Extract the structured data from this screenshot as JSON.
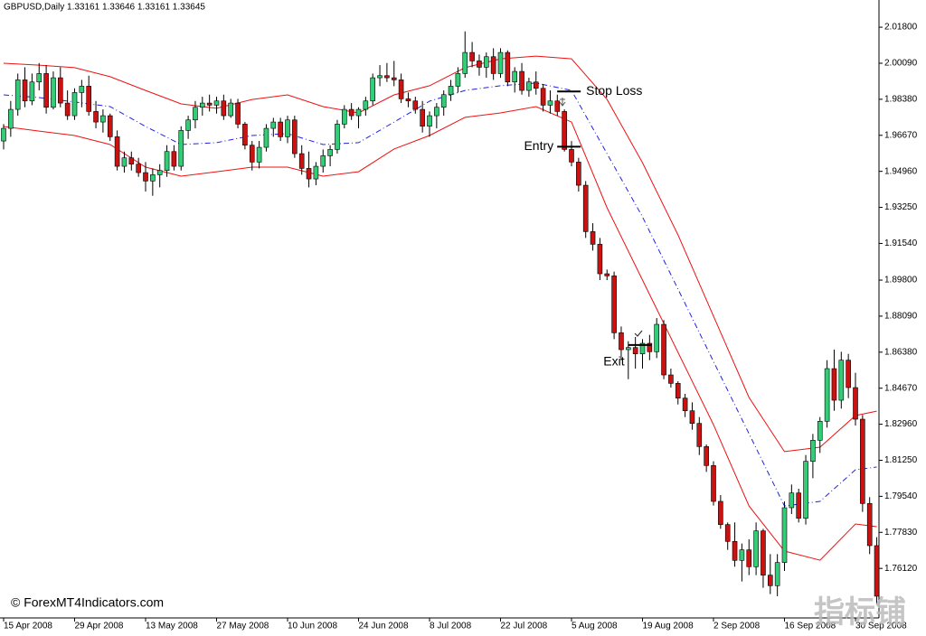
{
  "chart_data": {
    "type": "candlestick",
    "title": "GBPUSD,Daily  1.33161 1.33646 1.33161 1.33645",
    "credit": "© ForexMT4Indicators.com",
    "watermark": "指标铺",
    "categories": [
      "15 Apr 2008",
      null,
      null,
      null,
      null,
      null,
      null,
      null,
      null,
      null,
      "29 Apr 2008",
      null,
      null,
      null,
      null,
      null,
      null,
      null,
      null,
      null,
      "13 May 2008",
      null,
      null,
      null,
      null,
      null,
      null,
      null,
      null,
      null,
      "27 May 2008",
      null,
      null,
      null,
      null,
      null,
      null,
      null,
      null,
      null,
      "10 Jun 2008",
      null,
      null,
      null,
      null,
      null,
      null,
      null,
      null,
      null,
      "24 Jun 2008",
      null,
      null,
      null,
      null,
      null,
      null,
      null,
      null,
      null,
      "8 Jul 2008",
      null,
      null,
      null,
      null,
      null,
      null,
      null,
      null,
      null,
      "22 Jul 2008",
      null,
      null,
      null,
      null,
      null,
      null,
      null,
      null,
      null,
      "5 Aug 2008",
      null,
      null,
      null,
      null,
      null,
      null,
      null,
      null,
      null,
      "19 Aug 2008",
      null,
      null,
      null,
      null,
      null,
      null,
      null,
      null,
      null,
      "2 Sep 2008",
      null,
      null,
      null,
      null,
      null,
      null,
      null,
      null,
      null,
      "16 Sep 2008",
      null,
      null,
      null,
      null,
      null,
      null,
      null,
      null,
      null,
      "30 Sep 2008",
      null,
      null,
      null
    ],
    "open": [
      1.964,
      1.97,
      1.979,
      1.993,
      1.983,
      1.992,
      1.996,
      1.98,
      1.994,
      1.982,
      1.976,
      1.987,
      1.99,
      1.978,
      1.973,
      1.976,
      1.966,
      1.952,
      1.956,
      1.953,
      1.949,
      1.945,
      1.948,
      1.95,
      1.959,
      1.952,
      1.969,
      1.974,
      1.98,
      1.982,
      1.981,
      1.983,
      1.976,
      1.982,
      1.972,
      1.962,
      1.954,
      1.961,
      1.97,
      1.973,
      1.966,
      1.974,
      1.958,
      1.951,
      1.946,
      1.952,
      1.957,
      1.96,
      1.972,
      1.979,
      1.976,
      1.979,
      1.983,
      1.994,
      1.995,
      1.994,
      1.993,
      1.984,
      1.983,
      1.979,
      1.971,
      1.976,
      1.98,
      1.986,
      1.99,
      1.996,
      2.006,
      2.002,
      1.999,
      2.004,
      1.996,
      2.006,
      1.992,
      1.997,
      1.988,
      1.992,
      1.989,
      1.981,
      1.983,
      1.978,
      1.96,
      1.954,
      1.943,
      1.921,
      1.915,
      1.901,
      1.9,
      1.873,
      1.865,
      1.866,
      1.863,
      1.868,
      1.864,
      1.877,
      1.853,
      1.849,
      1.842,
      1.836,
      1.83,
      1.819,
      1.81,
      1.793,
      1.782,
      1.774,
      1.765,
      1.77,
      1.762,
      1.779,
      1.758,
      1.753,
      1.764,
      1.79,
      1.797,
      1.785,
      1.812,
      1.822,
      1.831,
      1.856,
      1.841,
      1.86,
      1.847,
      1.832,
      1.792,
      1.772
    ],
    "high": [
      1.972,
      1.983,
      1.996,
      1.999,
      1.996,
      2.001,
      2.0,
      1.997,
      1.999,
      1.988,
      1.989,
      1.993,
      1.995,
      1.983,
      1.979,
      1.977,
      1.969,
      1.959,
      1.959,
      1.956,
      1.954,
      1.951,
      1.953,
      1.962,
      1.962,
      1.971,
      1.976,
      1.983,
      1.985,
      1.986,
      1.985,
      1.986,
      1.984,
      1.984,
      1.973,
      1.964,
      1.964,
      1.972,
      1.975,
      1.975,
      1.976,
      1.976,
      1.962,
      1.959,
      1.954,
      1.96,
      1.962,
      1.974,
      1.981,
      1.982,
      1.98,
      1.985,
      1.996,
      2.0,
      2.001,
      2.002,
      1.996,
      1.987,
      1.985,
      1.983,
      1.978,
      1.982,
      1.988,
      1.993,
      1.999,
      2.016,
      2.011,
      2.005,
      2.006,
      2.008,
      2.008,
      2.007,
      1.999,
      2.001,
      1.994,
      1.997,
      1.991,
      1.988,
      1.986,
      1.979,
      1.964,
      1.956,
      1.945,
      1.925,
      1.918,
      1.903,
      1.902,
      1.876,
      1.869,
      1.871,
      1.87,
      1.872,
      1.88,
      1.879,
      1.856,
      1.85,
      1.844,
      1.84,
      1.833,
      1.82,
      1.812,
      1.796,
      1.783,
      1.783,
      1.773,
      1.775,
      1.783,
      1.78,
      1.768,
      1.768,
      1.793,
      1.801,
      1.799,
      1.815,
      1.825,
      1.833,
      1.86,
      1.865,
      1.864,
      1.863,
      1.854,
      1.834,
      1.795,
      1.776
    ],
    "low": [
      1.96,
      1.966,
      1.976,
      1.98,
      1.981,
      1.988,
      1.977,
      1.979,
      1.98,
      1.974,
      1.974,
      1.98,
      1.976,
      1.97,
      1.968,
      1.964,
      1.95,
      1.949,
      1.95,
      1.947,
      1.94,
      1.938,
      1.942,
      1.947,
      1.95,
      1.95,
      1.965,
      1.97,
      1.976,
      1.978,
      1.977,
      1.974,
      1.975,
      1.97,
      1.96,
      1.95,
      1.951,
      1.959,
      1.966,
      1.964,
      1.963,
      1.956,
      1.948,
      1.942,
      1.943,
      1.949,
      1.952,
      1.958,
      1.97,
      1.974,
      1.97,
      1.976,
      1.981,
      1.99,
      1.992,
      1.99,
      1.982,
      1.98,
      1.977,
      1.968,
      1.966,
      1.97,
      1.976,
      1.983,
      1.987,
      1.994,
      1.999,
      1.995,
      1.994,
      1.993,
      1.994,
      1.99,
      1.987,
      1.986,
      1.985,
      1.986,
      1.978,
      1.977,
      1.976,
      1.959,
      1.952,
      1.94,
      1.918,
      1.912,
      1.898,
      1.898,
      1.87,
      1.86,
      1.851,
      1.856,
      1.856,
      1.86,
      1.861,
      1.851,
      1.847,
      1.839,
      1.833,
      1.827,
      1.815,
      1.807,
      1.791,
      1.78,
      1.77,
      1.762,
      1.755,
      1.758,
      1.758,
      1.752,
      1.749,
      1.748,
      1.76,
      1.787,
      1.783,
      1.782,
      1.804,
      1.816,
      1.828,
      1.836,
      1.837,
      1.842,
      1.829,
      1.788,
      1.768,
      1.744
    ],
    "close": [
      1.97,
      1.979,
      1.993,
      1.983,
      1.992,
      1.996,
      1.98,
      1.994,
      1.982,
      1.976,
      1.987,
      1.99,
      1.978,
      1.973,
      1.976,
      1.966,
      1.952,
      1.956,
      1.953,
      1.949,
      1.945,
      1.948,
      1.95,
      1.959,
      1.952,
      1.969,
      1.974,
      1.98,
      1.982,
      1.981,
      1.983,
      1.976,
      1.982,
      1.972,
      1.962,
      1.954,
      1.961,
      1.97,
      1.973,
      1.966,
      1.974,
      1.958,
      1.951,
      1.946,
      1.952,
      1.957,
      1.96,
      1.972,
      1.979,
      1.976,
      1.979,
      1.983,
      1.994,
      1.995,
      1.994,
      1.993,
      1.984,
      1.983,
      1.979,
      1.971,
      1.976,
      1.98,
      1.986,
      1.99,
      1.996,
      2.006,
      2.002,
      1.999,
      2.004,
      1.996,
      2.006,
      1.992,
      1.997,
      1.988,
      1.992,
      1.989,
      1.981,
      1.983,
      1.978,
      1.96,
      1.954,
      1.943,
      1.921,
      1.915,
      1.901,
      1.9,
      1.873,
      1.865,
      1.866,
      1.863,
      1.868,
      1.864,
      1.877,
      1.853,
      1.849,
      1.842,
      1.836,
      1.83,
      1.819,
      1.81,
      1.793,
      1.782,
      1.774,
      1.765,
      1.77,
      1.762,
      1.779,
      1.758,
      1.753,
      1.764,
      1.79,
      1.797,
      1.785,
      1.812,
      1.822,
      1.831,
      1.856,
      1.841,
      1.86,
      1.847,
      1.832,
      1.792,
      1.772,
      1.748
    ],
    "up_color": "#33cc77",
    "down_color": "#cc1111",
    "bands": {
      "x": [
        0,
        5,
        10,
        15,
        20,
        25,
        30,
        35,
        40,
        45,
        50,
        55,
        60,
        65,
        70,
        75,
        80,
        85,
        90,
        95,
        100,
        105,
        110,
        115,
        120,
        123
      ],
      "series": [
        {
          "color": "#ee1111",
          "values": [
            2.0009,
            2.0,
            1.9988,
            1.9945,
            1.988,
            1.9816,
            1.9795,
            1.9837,
            1.9859,
            1.9803,
            1.9773,
            1.9859,
            1.9902,
            1.9988,
            2.003,
            2.0043,
            2.003,
            1.9837,
            1.9537,
            1.9194,
            1.8809,
            1.8423,
            1.8166,
            1.8187,
            1.8337,
            1.8358
          ]
        },
        {
          "color": "#2222dd",
          "dash": true,
          "values": [
            1.9859,
            1.9846,
            1.9825,
            1.9803,
            1.9709,
            1.9623,
            1.9632,
            1.9666,
            1.9675,
            1.9623,
            1.9632,
            1.973,
            1.9829,
            1.988,
            1.9902,
            1.9915,
            1.988,
            1.958,
            1.928,
            1.8937,
            1.8594,
            1.8251,
            1.7908,
            1.793,
            1.808,
            1.8093
          ]
        },
        {
          "color": "#ee1111",
          "values": [
            1.9709,
            1.9687,
            1.9666,
            1.9623,
            1.9516,
            1.9473,
            1.9494,
            1.9516,
            1.9516,
            1.9473,
            1.9494,
            1.9602,
            1.9666,
            1.9752,
            1.9773,
            1.9803,
            1.973,
            1.9323,
            1.898,
            1.8637,
            1.8294,
            1.7908,
            1.7694,
            1.7651,
            1.7823,
            1.781
          ]
        }
      ]
    },
    "annotations": [
      {
        "label": "Stop Loss",
        "value": 1.9875,
        "index": 79
      },
      {
        "label": "Entry",
        "value": 1.9613,
        "index": 79
      },
      {
        "label": "Exit",
        "value": 1.8672,
        "index": 89
      }
    ],
    "ylim": [
      1.7377,
      2.0309
    ],
    "yticks": [
      {
        "value": 2.018,
        "label": "2.01800"
      },
      {
        "value": 2.0009,
        "label": "2.00090"
      },
      {
        "value": 1.9838,
        "label": "1.98380"
      },
      {
        "value": 1.9667,
        "label": "1.96670"
      },
      {
        "value": 1.9496,
        "label": "1.94960"
      },
      {
        "value": 1.9325,
        "label": "1.93250"
      },
      {
        "value": 1.9154,
        "label": "1.91540"
      },
      {
        "value": 1.898,
        "label": "1.89800"
      },
      {
        "value": 1.8809,
        "label": "1.88090"
      },
      {
        "value": 1.8638,
        "label": "1.86380"
      },
      {
        "value": 1.8467,
        "label": "1.84670"
      },
      {
        "value": 1.8296,
        "label": "1.82960"
      },
      {
        "value": 1.8125,
        "label": "1.81250"
      },
      {
        "value": 1.7954,
        "label": "1.79540"
      },
      {
        "value": 1.7783,
        "label": "1.77830"
      },
      {
        "value": 1.7612,
        "label": "1.76120"
      }
    ]
  }
}
